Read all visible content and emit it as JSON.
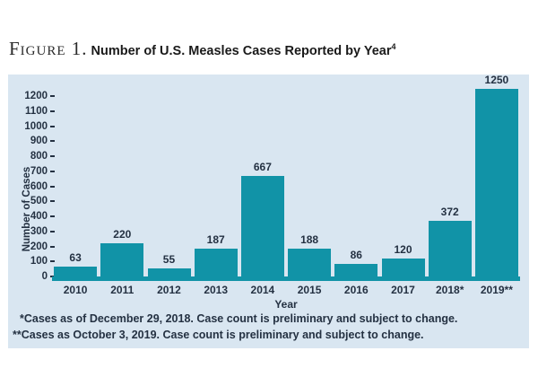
{
  "figure": {
    "label": "Figure 1.",
    "title": "Number of U.S. Measles Cases Reported by Year",
    "title_superscript": "4"
  },
  "chart_data": {
    "type": "bar",
    "categories": [
      "2010",
      "2011",
      "2012",
      "2013",
      "2014",
      "2015",
      "2016",
      "2017",
      "2018*",
      "2019**"
    ],
    "values": [
      63,
      220,
      55,
      187,
      667,
      188,
      86,
      120,
      372,
      1250
    ],
    "title": "Number of U.S. Measles Cases Reported by Year",
    "xlabel": "Year",
    "ylabel": "Number of Cases",
    "ylim": [
      0,
      1200
    ],
    "yticks": [
      0,
      100,
      200,
      300,
      400,
      500,
      600,
      700,
      800,
      900,
      1000,
      1100,
      1200
    ],
    "grid": false,
    "legend": "none",
    "value_labels_shown": true
  },
  "footnotes": [
    "*Cases as of December 29, 2018. Case count is preliminary and subject to change.",
    "**Cases as October 3, 2019. Case count is preliminary and subject to change."
  ],
  "colors": {
    "bar": "#1193a7",
    "panel_background": "#d9e6f1",
    "chart_text": "#243142",
    "page_background": "#ffffff"
  }
}
